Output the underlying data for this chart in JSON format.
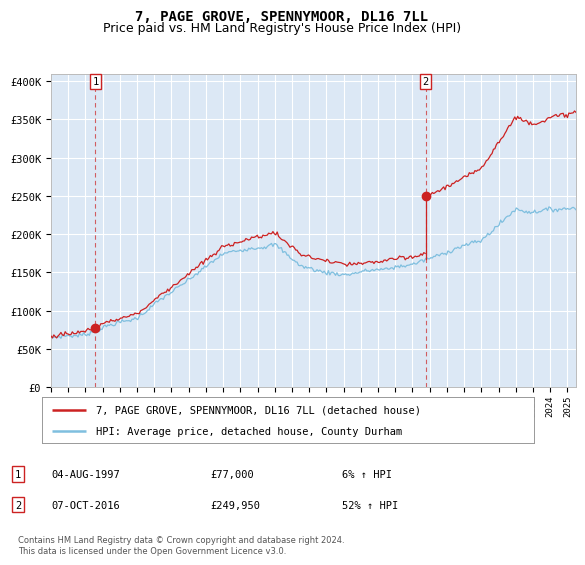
{
  "title": "7, PAGE GROVE, SPENNYMOOR, DL16 7LL",
  "subtitle": "Price paid vs. HM Land Registry's House Price Index (HPI)",
  "ylabel_ticks": [
    "£0",
    "£50K",
    "£100K",
    "£150K",
    "£200K",
    "£250K",
    "£300K",
    "£350K",
    "£400K"
  ],
  "ylim": [
    0,
    410000
  ],
  "xlim_start": 1995.0,
  "xlim_end": 2025.5,
  "sale1_date": 1997.58,
  "sale1_price": 77000,
  "sale1_label": "1",
  "sale2_date": 2016.77,
  "sale2_price": 249950,
  "sale2_label": "2",
  "hpi_color": "#7fbfdf",
  "sale_color": "#cc2222",
  "bg_color": "#dce8f5",
  "grid_color": "#ffffff",
  "legend_label1": "7, PAGE GROVE, SPENNYMOOR, DL16 7LL (detached house)",
  "legend_label2": "HPI: Average price, detached house, County Durham",
  "annotation1_date": "04-AUG-1997",
  "annotation1_price": "£77,000",
  "annotation1_hpi": "6% ↑ HPI",
  "annotation2_date": "07-OCT-2016",
  "annotation2_price": "£249,950",
  "annotation2_hpi": "52% ↑ HPI",
  "footer": "Contains HM Land Registry data © Crown copyright and database right 2024.\nThis data is licensed under the Open Government Licence v3.0.",
  "title_fontsize": 10,
  "subtitle_fontsize": 9
}
